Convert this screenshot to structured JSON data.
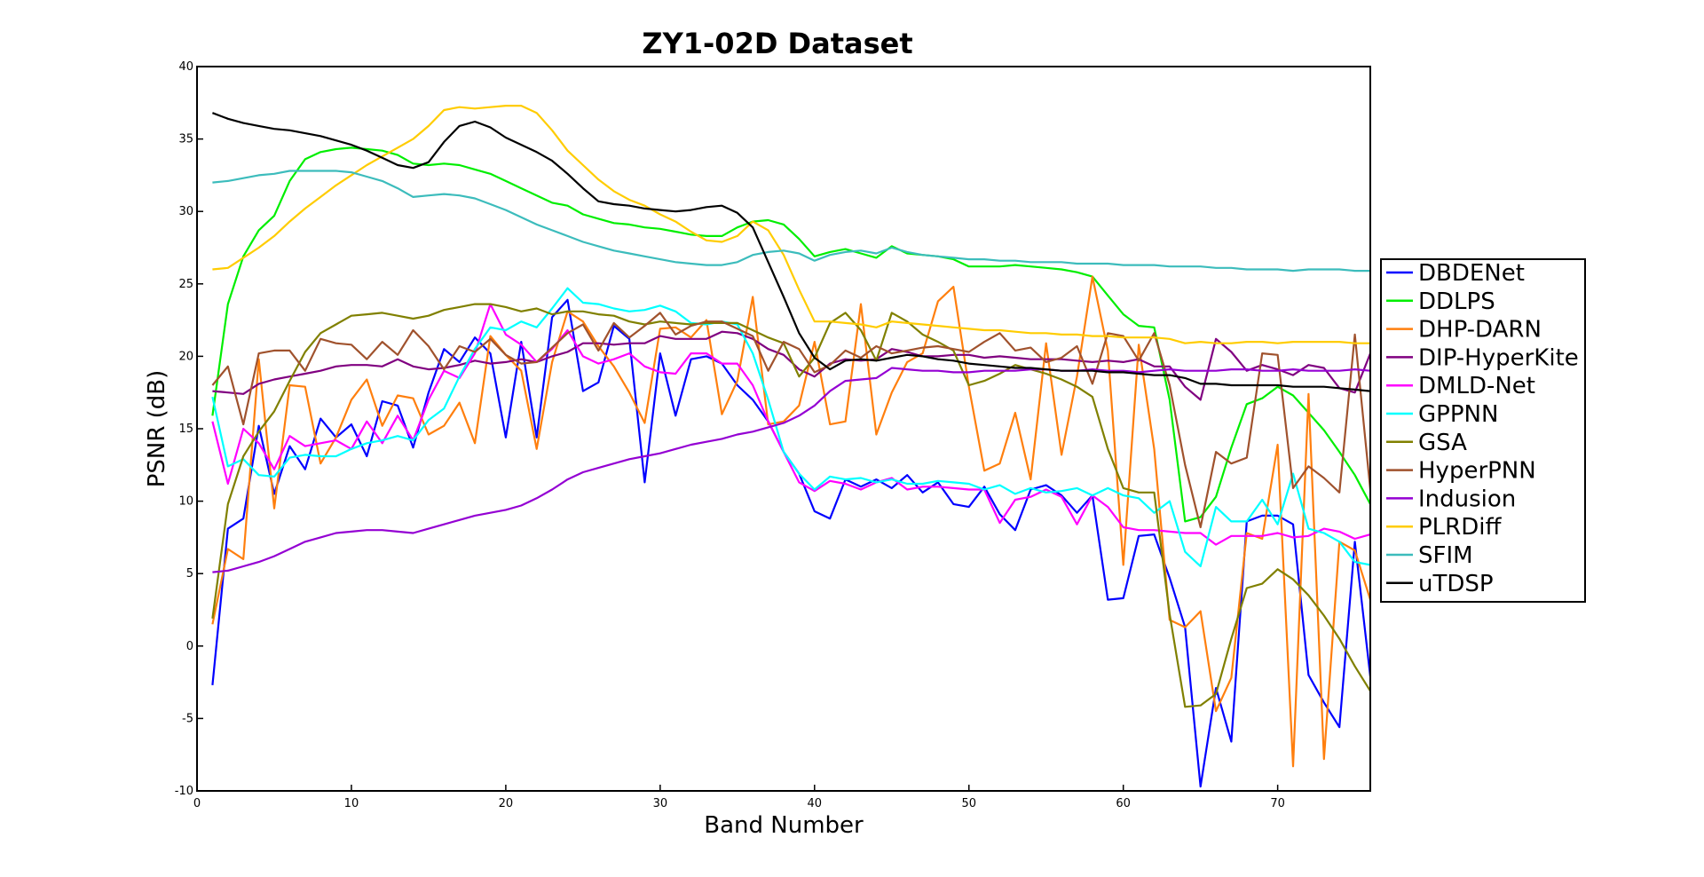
{
  "chart_data": {
    "type": "line",
    "title": "ZY1-02D Dataset",
    "xlabel": "Band Number",
    "ylabel": "PSNR (dB)",
    "xlim": [
      0,
      76
    ],
    "ylim": [
      -10,
      40
    ],
    "xticks": [
      0,
      10,
      20,
      30,
      40,
      50,
      60,
      70
    ],
    "yticks": [
      -10,
      -5,
      0,
      5,
      10,
      15,
      20,
      25,
      30,
      35,
      40
    ],
    "grid": false,
    "legend_position": "right",
    "x": [
      1,
      2,
      3,
      4,
      5,
      6,
      7,
      8,
      9,
      10,
      11,
      12,
      13,
      14,
      15,
      16,
      17,
      18,
      19,
      20,
      21,
      22,
      23,
      24,
      25,
      26,
      27,
      28,
      29,
      30,
      31,
      32,
      33,
      34,
      35,
      36,
      37,
      38,
      39,
      40,
      41,
      42,
      43,
      44,
      45,
      46,
      47,
      48,
      49,
      50,
      51,
      52,
      53,
      54,
      55,
      56,
      57,
      58,
      59,
      60,
      61,
      62,
      63,
      64,
      65,
      66,
      67,
      68,
      69,
      70,
      71,
      72,
      73,
      74,
      75,
      76
    ],
    "series": [
      {
        "name": "DBDENet",
        "color": "#0000ff",
        "values": [
          -2.7,
          8.1,
          8.8,
          15.2,
          10.5,
          13.8,
          12.2,
          15.7,
          14.4,
          15.3,
          13.1,
          16.9,
          16.6,
          13.7,
          17.5,
          20.5,
          19.6,
          21.3,
          20.2,
          14.4,
          21.0,
          14.4,
          22.7,
          23.9,
          17.6,
          18.2,
          22.1,
          21.2,
          11.3,
          20.2,
          15.9,
          19.8,
          20.0,
          19.5,
          18.0,
          17.0,
          15.5,
          13.4,
          11.9,
          9.3,
          8.8,
          11.5,
          11.0,
          11.5,
          10.9,
          11.8,
          10.6,
          11.3,
          9.8,
          9.6,
          11.0,
          9.1,
          8.0,
          10.8,
          11.1,
          10.4,
          9.2,
          10.4,
          3.2,
          3.3,
          7.6,
          7.7,
          4.7,
          1.3,
          -9.7,
          -2.9,
          -6.6,
          8.6,
          9.0,
          9.0,
          8.4,
          -2.0,
          -3.9,
          -5.6,
          7.2,
          -2.1
        ]
      },
      {
        "name": "DDLPS",
        "color": "#00ee00",
        "values": [
          15.9,
          23.6,
          26.9,
          28.7,
          29.7,
          32.1,
          33.6,
          34.1,
          34.3,
          34.4,
          34.3,
          34.2,
          33.9,
          33.3,
          33.2,
          33.3,
          33.2,
          32.9,
          32.6,
          32.1,
          31.6,
          31.1,
          30.6,
          30.4,
          29.8,
          29.5,
          29.2,
          29.1,
          28.9,
          28.8,
          28.6,
          28.4,
          28.3,
          28.3,
          28.9,
          29.3,
          29.4,
          29.1,
          28.1,
          26.9,
          27.2,
          27.4,
          27.1,
          26.8,
          27.6,
          27.1,
          27.0,
          26.9,
          26.7,
          26.2,
          26.2,
          26.2,
          26.3,
          26.2,
          26.1,
          26.0,
          25.8,
          25.5,
          24.2,
          22.9,
          22.1,
          22.0,
          17.0,
          8.6,
          8.9,
          10.3,
          13.7,
          16.7,
          17.1,
          17.9,
          17.3,
          16.1,
          14.9,
          13.4,
          11.8,
          9.8
        ]
      },
      {
        "name": "DHP-DARN",
        "color": "#ff7f0e",
        "values": [
          1.5,
          6.7,
          6.0,
          19.8,
          9.5,
          18.0,
          17.9,
          12.6,
          14.4,
          17.0,
          18.4,
          15.2,
          17.3,
          17.1,
          14.6,
          15.2,
          16.8,
          14.0,
          21.4,
          20.1,
          19.0,
          13.6,
          19.6,
          23.1,
          22.4,
          20.7,
          19.3,
          17.5,
          15.4,
          21.9,
          22.0,
          21.3,
          22.5,
          16.0,
          18.3,
          24.1,
          15.3,
          15.5,
          16.6,
          21.0,
          15.3,
          15.5,
          23.6,
          14.6,
          17.5,
          19.6,
          20.2,
          23.8,
          24.8,
          17.9,
          12.1,
          12.6,
          16.1,
          11.5,
          20.9,
          13.2,
          18.6,
          25.5,
          20.4,
          5.6,
          20.8,
          13.6,
          1.8,
          1.3,
          2.4,
          -4.5,
          -2.2,
          7.8,
          7.4,
          13.9,
          -8.3,
          17.4,
          -7.8,
          7.2,
          6.6,
          3.2
        ]
      },
      {
        "name": "DIP-HyperKite",
        "color": "#800080",
        "values": [
          17.6,
          17.5,
          17.4,
          18.1,
          18.4,
          18.6,
          18.8,
          19.0,
          19.3,
          19.4,
          19.4,
          19.3,
          19.8,
          19.3,
          19.1,
          19.2,
          19.4,
          19.7,
          19.5,
          19.6,
          19.8,
          19.6,
          20.0,
          20.3,
          20.9,
          20.9,
          20.8,
          20.9,
          20.9,
          21.4,
          21.2,
          21.2,
          21.2,
          21.7,
          21.6,
          21.2,
          20.5,
          20.1,
          19.1,
          18.6,
          19.5,
          19.8,
          19.7,
          19.8,
          20.5,
          20.3,
          20.0,
          20.0,
          20.1,
          20.1,
          19.9,
          20.0,
          19.9,
          19.8,
          19.8,
          19.8,
          19.7,
          19.6,
          19.7,
          19.6,
          19.8,
          19.3,
          19.3,
          17.9,
          17.0,
          21.2,
          20.3,
          19.0,
          19.4,
          19.1,
          18.7,
          19.4,
          19.2,
          17.8,
          17.5,
          20.2
        ]
      },
      {
        "name": "DMLD-Net",
        "color": "#ff00ff",
        "values": [
          15.5,
          11.2,
          15.0,
          14.0,
          12.2,
          14.5,
          13.8,
          14.0,
          14.2,
          13.6,
          15.5,
          14.0,
          15.9,
          14.2,
          17.0,
          19.0,
          18.5,
          20.2,
          23.6,
          21.5,
          20.8,
          19.6,
          20.5,
          21.8,
          20.0,
          19.5,
          19.8,
          20.2,
          19.3,
          18.9,
          18.8,
          20.2,
          20.2,
          19.5,
          19.5,
          18.0,
          15.5,
          13.4,
          11.3,
          10.7,
          11.4,
          11.2,
          10.8,
          11.3,
          11.6,
          10.8,
          11.0,
          11.0,
          10.9,
          10.8,
          10.8,
          8.5,
          10.1,
          10.3,
          10.8,
          10.3,
          8.4,
          10.4,
          9.6,
          8.2,
          8.0,
          8.0,
          7.9,
          7.8,
          7.8,
          7.0,
          7.6,
          7.6,
          7.6,
          7.8,
          7.5,
          7.6,
          8.1,
          7.9,
          7.4,
          7.7
        ]
      },
      {
        "name": "GPPNN",
        "color": "#00ffff",
        "values": [
          17.2,
          12.4,
          12.9,
          11.8,
          11.7,
          13.0,
          13.2,
          13.1,
          13.1,
          13.6,
          14.0,
          14.2,
          14.5,
          14.2,
          15.6,
          16.4,
          18.6,
          20.5,
          22.0,
          21.8,
          22.4,
          22.0,
          23.3,
          24.7,
          23.7,
          23.6,
          23.3,
          23.1,
          23.2,
          23.5,
          23.1,
          22.3,
          22.2,
          22.4,
          22.2,
          20.2,
          17.0,
          13.4,
          11.9,
          10.8,
          11.7,
          11.5,
          11.6,
          11.3,
          11.5,
          11.2,
          11.2,
          11.4,
          11.3,
          11.2,
          10.8,
          11.1,
          10.5,
          10.9,
          10.6,
          10.7,
          10.9,
          10.4,
          10.9,
          10.4,
          10.2,
          9.2,
          10.0,
          6.5,
          5.5,
          9.6,
          8.6,
          8.6,
          10.1,
          8.4,
          11.9,
          8.1,
          7.8,
          7.2,
          5.8,
          5.6
        ]
      },
      {
        "name": "GSA",
        "color": "#808000",
        "values": [
          1.9,
          9.8,
          13.1,
          14.8,
          16.2,
          18.3,
          20.3,
          21.6,
          22.2,
          22.8,
          22.9,
          23.0,
          22.8,
          22.6,
          22.8,
          23.2,
          23.4,
          23.6,
          23.6,
          23.4,
          23.1,
          23.3,
          22.9,
          23.1,
          23.1,
          22.9,
          22.8,
          22.4,
          22.2,
          22.4,
          22.3,
          22.2,
          22.3,
          22.3,
          22.3,
          21.8,
          21.3,
          20.9,
          18.6,
          19.9,
          22.3,
          23.0,
          21.8,
          19.7,
          23.0,
          22.4,
          21.5,
          21.0,
          20.4,
          18.0,
          18.3,
          18.8,
          19.4,
          19.1,
          18.8,
          18.4,
          17.9,
          17.2,
          13.6,
          10.9,
          10.6,
          10.6,
          2.2,
          -4.2,
          -4.1,
          -3.3,
          0.5,
          4.0,
          4.3,
          5.3,
          4.6,
          3.5,
          2.1,
          0.5,
          -1.4,
          -3.1
        ]
      },
      {
        "name": "HyperPNN",
        "color": "#a0522d",
        "values": [
          18.0,
          19.3,
          15.3,
          20.2,
          20.4,
          20.4,
          19.0,
          21.2,
          20.9,
          20.8,
          19.8,
          21.0,
          20.1,
          21.8,
          20.7,
          19.1,
          20.7,
          20.3,
          21.2,
          20.1,
          19.5,
          19.6,
          20.6,
          21.6,
          22.2,
          20.4,
          22.3,
          21.3,
          22.1,
          23.0,
          21.5,
          22.1,
          22.4,
          22.4,
          21.9,
          21.4,
          19.0,
          21.0,
          20.5,
          18.9,
          19.4,
          20.4,
          19.9,
          20.7,
          20.2,
          20.4,
          20.6,
          20.7,
          20.5,
          20.3,
          21.0,
          21.6,
          20.4,
          20.6,
          19.6,
          19.9,
          20.7,
          18.1,
          21.6,
          21.4,
          19.7,
          21.6,
          18.0,
          12.5,
          8.2,
          13.4,
          12.6,
          13.0,
          20.2,
          20.1,
          10.9,
          12.4,
          11.6,
          10.6,
          21.5,
          10.8
        ]
      },
      {
        "name": "Indusion",
        "color": "#9400d3",
        "values": [
          5.1,
          5.2,
          5.5,
          5.8,
          6.2,
          6.7,
          7.2,
          7.5,
          7.8,
          7.9,
          8.0,
          8.0,
          7.9,
          7.8,
          8.1,
          8.4,
          8.7,
          9.0,
          9.2,
          9.4,
          9.7,
          10.2,
          10.8,
          11.5,
          12.0,
          12.3,
          12.6,
          12.9,
          13.1,
          13.3,
          13.6,
          13.9,
          14.1,
          14.3,
          14.6,
          14.8,
          15.1,
          15.4,
          15.9,
          16.6,
          17.6,
          18.3,
          18.4,
          18.5,
          19.2,
          19.1,
          19.0,
          19.0,
          18.9,
          18.9,
          19.0,
          19.0,
          19.0,
          19.1,
          19.1,
          19.0,
          19.0,
          19.1,
          19.0,
          19.0,
          18.9,
          19.0,
          19.1,
          19.0,
          19.0,
          19.0,
          19.1,
          19.1,
          19.0,
          19.0,
          19.1,
          19.0,
          19.0,
          19.0,
          19.1,
          19.0
        ]
      },
      {
        "name": "PLRDiff",
        "color": "#ffcc00",
        "values": [
          26.0,
          26.1,
          26.8,
          27.5,
          28.3,
          29.3,
          30.2,
          31.0,
          31.8,
          32.5,
          33.2,
          33.8,
          34.4,
          35.0,
          35.9,
          37.0,
          37.2,
          37.1,
          37.2,
          37.3,
          37.3,
          36.8,
          35.6,
          34.2,
          33.2,
          32.2,
          31.4,
          30.8,
          30.4,
          29.8,
          29.3,
          28.6,
          28.0,
          27.9,
          28.3,
          29.3,
          28.7,
          27.0,
          24.6,
          22.4,
          22.4,
          22.3,
          22.2,
          22.0,
          22.4,
          22.3,
          22.2,
          22.1,
          22.0,
          21.9,
          21.8,
          21.8,
          21.7,
          21.6,
          21.6,
          21.5,
          21.5,
          21.4,
          21.4,
          21.3,
          21.3,
          21.3,
          21.2,
          20.9,
          21.0,
          20.9,
          20.9,
          21.0,
          21.0,
          20.9,
          21.0,
          21.0,
          21.0,
          21.0,
          20.9,
          20.9
        ]
      },
      {
        "name": "SFIM",
        "color": "#3cbcbc",
        "values": [
          32.0,
          32.1,
          32.3,
          32.5,
          32.6,
          32.8,
          32.8,
          32.8,
          32.8,
          32.7,
          32.4,
          32.1,
          31.6,
          31.0,
          31.1,
          31.2,
          31.1,
          30.9,
          30.5,
          30.1,
          29.6,
          29.1,
          28.7,
          28.3,
          27.9,
          27.6,
          27.3,
          27.1,
          26.9,
          26.7,
          26.5,
          26.4,
          26.3,
          26.3,
          26.5,
          27.0,
          27.2,
          27.3,
          27.1,
          26.6,
          27.0,
          27.2,
          27.3,
          27.1,
          27.5,
          27.2,
          27.0,
          26.9,
          26.8,
          26.7,
          26.7,
          26.6,
          26.6,
          26.5,
          26.5,
          26.5,
          26.4,
          26.4,
          26.4,
          26.3,
          26.3,
          26.3,
          26.2,
          26.2,
          26.2,
          26.1,
          26.1,
          26.0,
          26.0,
          26.0,
          25.9,
          26.0,
          26.0,
          26.0,
          25.9,
          25.9
        ]
      },
      {
        "name": "uTDSP",
        "color": "#000000",
        "values": [
          36.8,
          36.4,
          36.1,
          35.9,
          35.7,
          35.6,
          35.4,
          35.2,
          34.9,
          34.6,
          34.2,
          33.7,
          33.2,
          33.0,
          33.4,
          34.8,
          35.9,
          36.2,
          35.8,
          35.1,
          34.6,
          34.1,
          33.5,
          32.6,
          31.6,
          30.7,
          30.5,
          30.4,
          30.2,
          30.1,
          30.0,
          30.1,
          30.3,
          30.4,
          29.9,
          28.9,
          26.5,
          24.1,
          21.6,
          19.9,
          19.1,
          19.7,
          19.8,
          19.7,
          19.9,
          20.1,
          20.0,
          19.8,
          19.7,
          19.5,
          19.4,
          19.3,
          19.2,
          19.2,
          19.1,
          19.0,
          19.0,
          19.0,
          18.9,
          18.9,
          18.8,
          18.7,
          18.7,
          18.5,
          18.1,
          18.1,
          18.0,
          18.0,
          18.0,
          18.0,
          17.9,
          17.9,
          17.9,
          17.8,
          17.7,
          17.6
        ]
      }
    ]
  }
}
